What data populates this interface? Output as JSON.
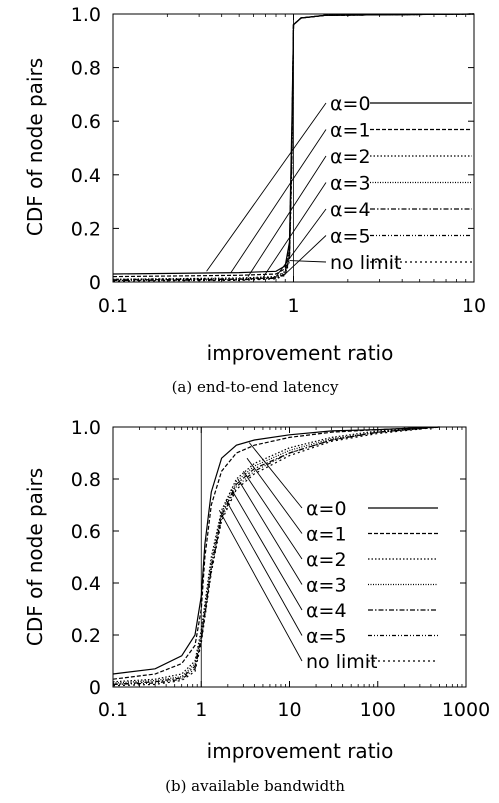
{
  "chart_data": [
    {
      "type": "line",
      "caption": "(a)  end-to-end latency",
      "xlabel": "improvement ratio",
      "ylabel": "CDF of node pairs",
      "xscale": "log",
      "xlim": [
        0.1,
        10
      ],
      "ylim": [
        0,
        1.0
      ],
      "xticks": [
        "0.1",
        "1",
        "10"
      ],
      "yticks": [
        "0",
        "0.2",
        "0.4",
        "0.6",
        "0.8",
        "1.0"
      ],
      "grid": false,
      "legend_position": "right",
      "series": [
        {
          "name": "α=0",
          "dash": "solid",
          "points": [
            [
              0.1,
              0.03
            ],
            [
              0.5,
              0.035
            ],
            [
              0.8,
              0.04
            ],
            [
              0.9,
              0.06
            ],
            [
              0.95,
              0.15
            ],
            [
              0.98,
              0.6
            ],
            [
              1.0,
              0.96
            ],
            [
              1.1,
              0.985
            ],
            [
              1.5,
              0.995
            ],
            [
              10,
              1.0
            ]
          ]
        },
        {
          "name": "α=1",
          "dash": "dashed",
          "points": [
            [
              0.1,
              0.02
            ],
            [
              0.5,
              0.025
            ],
            [
              0.8,
              0.03
            ],
            [
              0.9,
              0.05
            ],
            [
              0.95,
              0.13
            ],
            [
              0.98,
              0.55
            ],
            [
              1.0,
              0.96
            ],
            [
              1.1,
              0.985
            ],
            [
              1.5,
              0.995
            ],
            [
              10,
              1.0
            ]
          ]
        },
        {
          "name": "α=2",
          "dash": "dotted",
          "points": [
            [
              0.1,
              0.01
            ],
            [
              0.5,
              0.015
            ],
            [
              0.8,
              0.02
            ],
            [
              0.9,
              0.04
            ],
            [
              0.95,
              0.12
            ],
            [
              0.98,
              0.52
            ],
            [
              1.0,
              0.96
            ],
            [
              1.1,
              0.985
            ],
            [
              1.5,
              0.995
            ],
            [
              10,
              1.0
            ]
          ]
        },
        {
          "name": "α=3",
          "dash": "fine-dotted",
          "points": [
            [
              0.1,
              0.01
            ],
            [
              0.5,
              0.012
            ],
            [
              0.8,
              0.018
            ],
            [
              0.9,
              0.035
            ],
            [
              0.95,
              0.11
            ],
            [
              0.98,
              0.5
            ],
            [
              1.0,
              0.96
            ],
            [
              1.1,
              0.985
            ],
            [
              1.5,
              0.995
            ],
            [
              10,
              1.0
            ]
          ]
        },
        {
          "name": "α=4",
          "dash": "dash-dot",
          "points": [
            [
              0.1,
              0.008
            ],
            [
              0.5,
              0.01
            ],
            [
              0.8,
              0.016
            ],
            [
              0.9,
              0.03
            ],
            [
              0.95,
              0.1
            ],
            [
              0.98,
              0.48
            ],
            [
              1.0,
              0.96
            ],
            [
              1.1,
              0.985
            ],
            [
              1.5,
              0.995
            ],
            [
              10,
              1.0
            ]
          ]
        },
        {
          "name": "α=5",
          "dash": "dash-dot-dot",
          "points": [
            [
              0.1,
              0.006
            ],
            [
              0.5,
              0.008
            ],
            [
              0.8,
              0.014
            ],
            [
              0.9,
              0.028
            ],
            [
              0.95,
              0.09
            ],
            [
              0.98,
              0.46
            ],
            [
              1.0,
              0.96
            ],
            [
              1.1,
              0.985
            ],
            [
              1.5,
              0.995
            ],
            [
              10,
              1.0
            ]
          ]
        },
        {
          "name": "no limit",
          "dash": "sparse-dotted",
          "points": [
            [
              0.1,
              0.004
            ],
            [
              0.5,
              0.006
            ],
            [
              0.8,
              0.012
            ],
            [
              0.9,
              0.025
            ],
            [
              0.95,
              0.08
            ],
            [
              0.98,
              0.44
            ],
            [
              1.0,
              0.96
            ],
            [
              1.1,
              0.985
            ],
            [
              1.5,
              0.995
            ],
            [
              10,
              1.0
            ]
          ]
        }
      ],
      "annotations": [
        {
          "legend": "α=0",
          "target": [
            0.33,
            0.04
          ]
        },
        {
          "legend": "α=1",
          "target": [
            0.45,
            0.035
          ]
        },
        {
          "legend": "α=2",
          "target": [
            0.56,
            0.02
          ]
        },
        {
          "legend": "α=3",
          "target": [
            0.68,
            0.018
          ]
        },
        {
          "legend": "α=4",
          "target": [
            0.8,
            0.02
          ]
        },
        {
          "legend": "α=5",
          "target": [
            0.9,
            0.03
          ]
        },
        {
          "legend": "no limit",
          "target": [
            0.95,
            0.08
          ]
        }
      ]
    },
    {
      "type": "line",
      "caption": "(b)  available bandwidth",
      "xlabel": "improvement ratio",
      "ylabel": "CDF of node pairs",
      "xscale": "log",
      "xlim": [
        0.1,
        1000
      ],
      "ylim": [
        0,
        1.0
      ],
      "xticks": [
        "0.1",
        "1",
        "10",
        "100",
        "1000"
      ],
      "yticks": [
        "0",
        "0.2",
        "0.4",
        "0.6",
        "0.8",
        "1.0"
      ],
      "grid": false,
      "legend_position": "right",
      "series": [
        {
          "name": "α=0",
          "dash": "solid",
          "points": [
            [
              0.1,
              0.05
            ],
            [
              0.3,
              0.07
            ],
            [
              0.6,
              0.12
            ],
            [
              0.85,
              0.2
            ],
            [
              1.0,
              0.35
            ],
            [
              1.1,
              0.55
            ],
            [
              1.3,
              0.75
            ],
            [
              1.7,
              0.88
            ],
            [
              2.5,
              0.93
            ],
            [
              4,
              0.95
            ],
            [
              10,
              0.97
            ],
            [
              30,
              0.985
            ],
            [
              100,
              0.99
            ],
            [
              500,
              1.0
            ]
          ]
        },
        {
          "name": "α=1",
          "dash": "dashed",
          "points": [
            [
              0.1,
              0.03
            ],
            [
              0.3,
              0.05
            ],
            [
              0.6,
              0.09
            ],
            [
              0.85,
              0.16
            ],
            [
              1.0,
              0.3
            ],
            [
              1.1,
              0.5
            ],
            [
              1.3,
              0.7
            ],
            [
              1.7,
              0.83
            ],
            [
              2.5,
              0.9
            ],
            [
              4,
              0.93
            ],
            [
              10,
              0.96
            ],
            [
              30,
              0.98
            ],
            [
              100,
              0.99
            ],
            [
              500,
              1.0
            ]
          ]
        },
        {
          "name": "α=2",
          "dash": "dotted",
          "points": [
            [
              0.1,
              0.02
            ],
            [
              0.3,
              0.03
            ],
            [
              0.6,
              0.05
            ],
            [
              0.85,
              0.1
            ],
            [
              1.0,
              0.22
            ],
            [
              1.3,
              0.5
            ],
            [
              1.7,
              0.68
            ],
            [
              2.5,
              0.8
            ],
            [
              4,
              0.86
            ],
            [
              10,
              0.92
            ],
            [
              30,
              0.96
            ],
            [
              100,
              0.985
            ],
            [
              500,
              1.0
            ]
          ]
        },
        {
          "name": "α=3",
          "dash": "fine-dotted",
          "points": [
            [
              0.1,
              0.015
            ],
            [
              0.3,
              0.025
            ],
            [
              0.6,
              0.04
            ],
            [
              0.85,
              0.09
            ],
            [
              1.0,
              0.2
            ],
            [
              1.3,
              0.48
            ],
            [
              1.7,
              0.67
            ],
            [
              2.5,
              0.79
            ],
            [
              4,
              0.85
            ],
            [
              10,
              0.91
            ],
            [
              30,
              0.955
            ],
            [
              100,
              0.98
            ],
            [
              500,
              1.0
            ]
          ]
        },
        {
          "name": "α=4",
          "dash": "dash-dot",
          "points": [
            [
              0.1,
              0.01
            ],
            [
              0.3,
              0.02
            ],
            [
              0.6,
              0.035
            ],
            [
              0.85,
              0.08
            ],
            [
              1.0,
              0.19
            ],
            [
              1.3,
              0.46
            ],
            [
              1.7,
              0.66
            ],
            [
              2.5,
              0.78
            ],
            [
              4,
              0.84
            ],
            [
              10,
              0.9
            ],
            [
              30,
              0.95
            ],
            [
              100,
              0.98
            ],
            [
              500,
              1.0
            ]
          ]
        },
        {
          "name": "α=5",
          "dash": "dash-dot-dot",
          "points": [
            [
              0.1,
              0.01
            ],
            [
              0.3,
              0.015
            ],
            [
              0.6,
              0.03
            ],
            [
              0.85,
              0.07
            ],
            [
              1.0,
              0.18
            ],
            [
              1.3,
              0.45
            ],
            [
              1.7,
              0.65
            ],
            [
              2.5,
              0.77
            ],
            [
              4,
              0.83
            ],
            [
              10,
              0.9
            ],
            [
              30,
              0.95
            ],
            [
              100,
              0.98
            ],
            [
              500,
              1.0
            ]
          ]
        },
        {
          "name": "no limit",
          "dash": "sparse-dotted",
          "points": [
            [
              0.1,
              0.005
            ],
            [
              0.3,
              0.01
            ],
            [
              0.6,
              0.025
            ],
            [
              0.85,
              0.06
            ],
            [
              1.0,
              0.17
            ],
            [
              1.3,
              0.44
            ],
            [
              1.7,
              0.64
            ],
            [
              2.5,
              0.76
            ],
            [
              4,
              0.82
            ],
            [
              10,
              0.89
            ],
            [
              30,
              0.945
            ],
            [
              100,
              0.975
            ],
            [
              500,
              1.0
            ]
          ]
        }
      ],
      "annotations": [
        {
          "legend": "α=0",
          "target": [
            3.5,
            0.94
          ]
        },
        {
          "legend": "α=1",
          "target": [
            3.3,
            0.88
          ]
        },
        {
          "legend": "α=2",
          "target": [
            3.0,
            0.83
          ]
        },
        {
          "legend": "α=3",
          "target": [
            2.6,
            0.8
          ]
        },
        {
          "legend": "α=4",
          "target": [
            2.2,
            0.76
          ]
        },
        {
          "legend": "α=5",
          "target": [
            1.9,
            0.72
          ]
        },
        {
          "legend": "no limit",
          "target": [
            1.6,
            0.68
          ]
        }
      ]
    }
  ]
}
